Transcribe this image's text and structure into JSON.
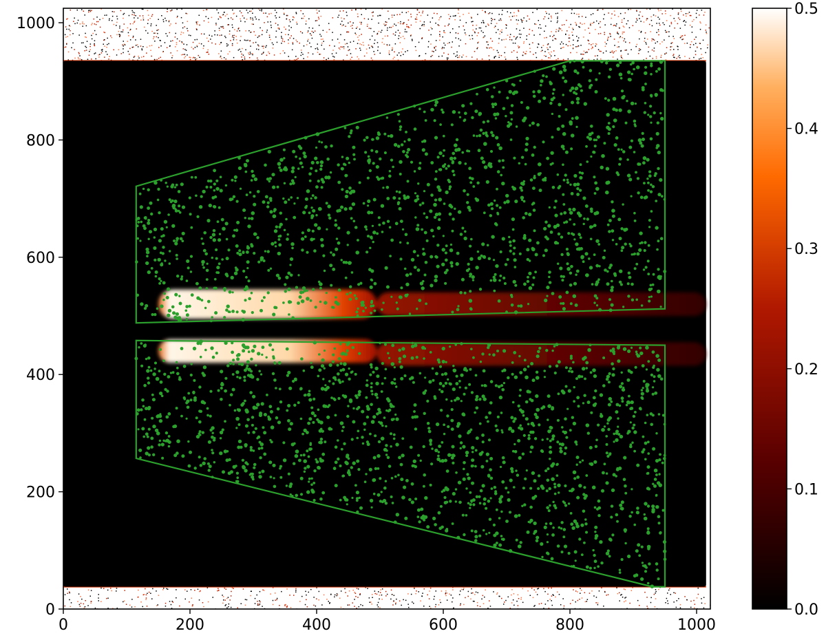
{
  "chart_data": {
    "type": "heatmap",
    "title": "",
    "xlabel": "",
    "ylabel": "",
    "xlim": [
      0,
      1024
    ],
    "ylim": [
      0,
      1024
    ],
    "x_ticks": [
      0,
      200,
      400,
      600,
      800,
      1000
    ],
    "y_ticks": [
      0,
      200,
      400,
      600,
      800,
      1000
    ],
    "x_tick_labels": [
      "0",
      "200",
      "400",
      "600",
      "800",
      "1000"
    ],
    "y_tick_labels": [
      "0",
      "200",
      "400",
      "600",
      "800",
      "1000"
    ],
    "colormap": "gist_heat",
    "colorbar": {
      "range": [
        0.0,
        0.5
      ],
      "ticks": [
        0.0,
        0.1,
        0.2,
        0.3,
        0.4,
        0.5
      ],
      "tick_labels": [
        "0.0",
        "0.1",
        "0.2",
        "0.3",
        "0.4",
        "0.5"
      ]
    },
    "detector_region": {
      "x": [
        0,
        1015
      ],
      "y": [
        38,
        935
      ]
    },
    "bright_bands": [
      {
        "x": [
          150,
          495
        ],
        "y": [
          495,
          545
        ],
        "level": 0.5
      },
      {
        "x": [
          150,
          495
        ],
        "y": [
          420,
          460
        ],
        "level": 0.5
      },
      {
        "x": [
          495,
          1015
        ],
        "y": [
          500,
          540
        ],
        "level": 0.15
      },
      {
        "x": [
          495,
          1015
        ],
        "y": [
          415,
          455
        ],
        "level": 0.12
      }
    ],
    "regions": [
      {
        "shape": "polygon",
        "points": [
          [
            115,
            488
          ],
          [
            115,
            721
          ],
          [
            800,
            935
          ],
          [
            950,
            935
          ],
          [
            950,
            512
          ]
        ]
      },
      {
        "shape": "polygon",
        "points": [
          [
            115,
            458
          ],
          [
            115,
            257
          ],
          [
            930,
            38
          ],
          [
            950,
            38
          ],
          [
            950,
            450
          ]
        ]
      }
    ],
    "colors": {
      "region": "#2ca02c",
      "background": "#000000",
      "border_noise": "#ffffff"
    }
  }
}
